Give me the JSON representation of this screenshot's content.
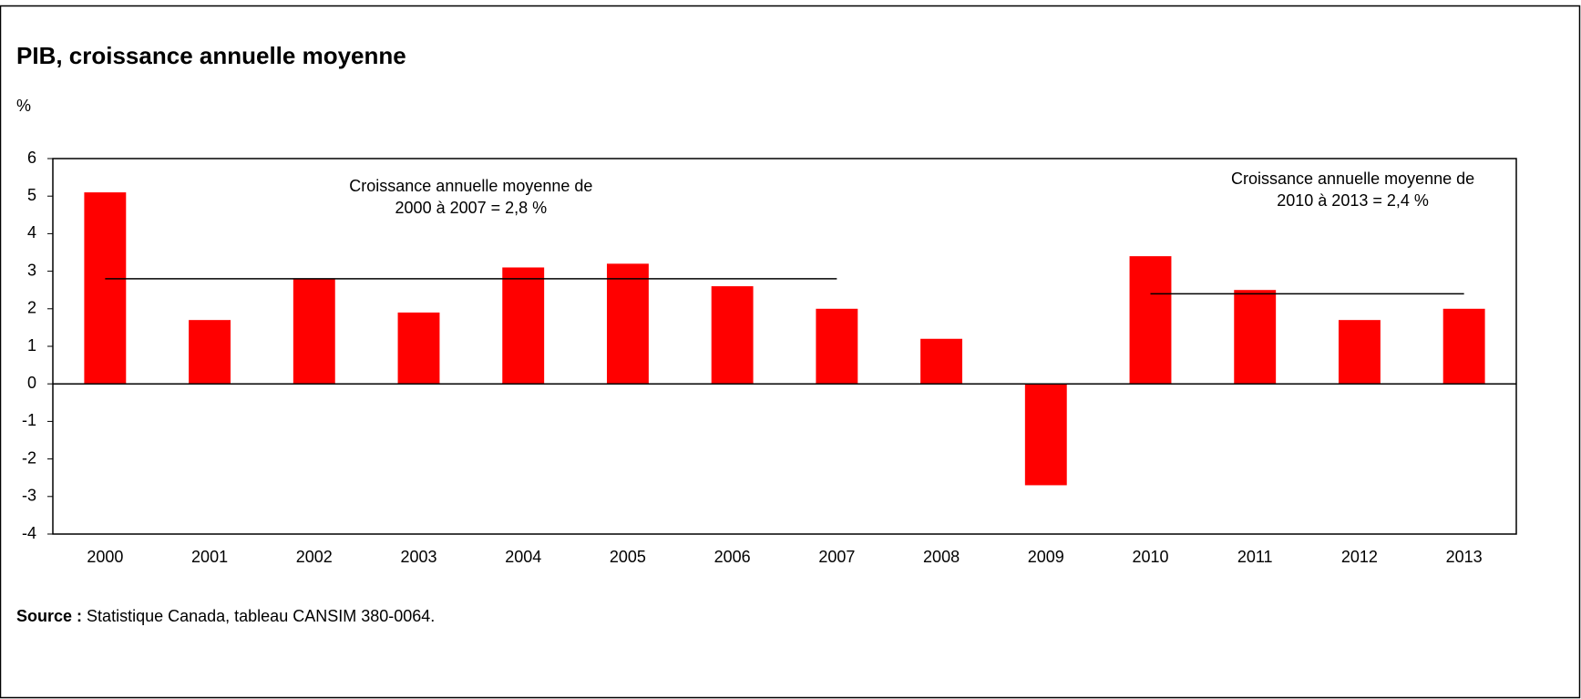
{
  "chart_data": {
    "type": "bar",
    "title": "PIB, croissance annuelle moyenne",
    "y_unit": "%",
    "categories": [
      "2000",
      "2001",
      "2002",
      "2003",
      "2004",
      "2005",
      "2006",
      "2007",
      "2008",
      "2009",
      "2010",
      "2011",
      "2012",
      "2013"
    ],
    "values": [
      5.1,
      1.7,
      2.8,
      1.9,
      3.1,
      3.2,
      2.6,
      2.0,
      1.2,
      -2.7,
      3.4,
      2.5,
      1.7,
      2.0
    ],
    "color": "#ff0000",
    "ylim": [
      -4,
      6
    ],
    "yticks": [
      -4,
      -3,
      -2,
      -1,
      0,
      1,
      2,
      3,
      4,
      5,
      6
    ],
    "grid": false,
    "average_lines": [
      {
        "label": [
          "Croissance annuelle moyenne de",
          "2000 à 2007 = 2,8 %"
        ],
        "value": 2.8,
        "from": "2000",
        "to": "2007"
      },
      {
        "label": [
          "Croissance annuelle moyenne de",
          "2010 à 2013 = 2,4 %"
        ],
        "value": 2.4,
        "from": "2010",
        "to": "2013"
      }
    ],
    "source": {
      "label": "Source :",
      "text": "Statistique Canada, tableau CANSIM 380-0064."
    }
  }
}
